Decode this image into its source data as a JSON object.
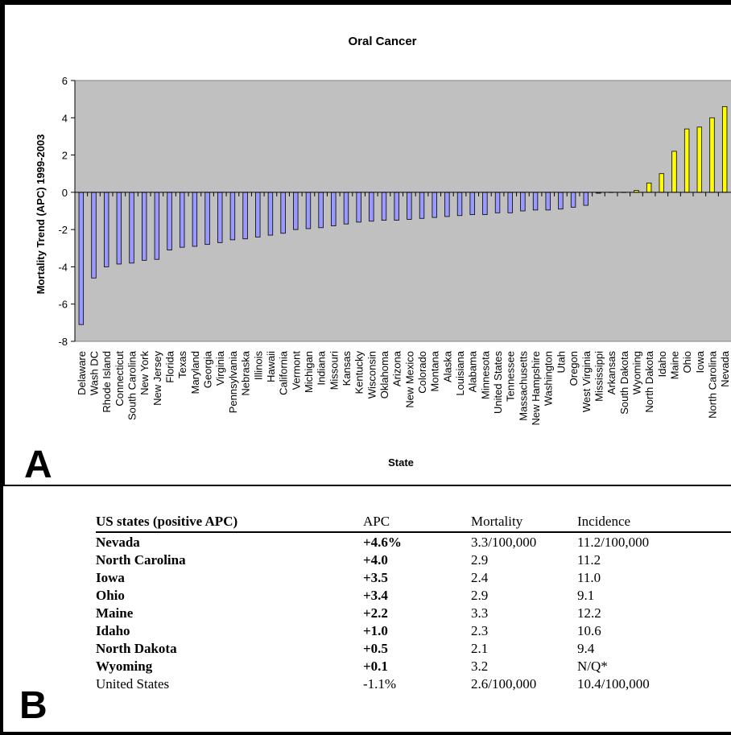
{
  "chart_data": {
    "type": "bar",
    "title": "Oral Cancer",
    "xlabel": "State",
    "ylabel": "Mortality Trend (APC) 1999-2003",
    "ylim": [
      -8,
      6
    ],
    "yticks": [
      6,
      4,
      2,
      0,
      -2,
      -4,
      -6,
      -8
    ],
    "grid": false,
    "categories": [
      "Delaware",
      "Wash DC",
      "Rhode Island",
      "Connecticut",
      "South Carolina",
      "New York",
      "New Jersey",
      "Florida",
      "Texas",
      "Maryland",
      "Georgia",
      "Virginia",
      "Pennsylvania",
      "Nebraska",
      "Illinois",
      "Hawaii",
      "California",
      "Vermont",
      "Michigan",
      "Indiana",
      "Missouri",
      "Kansas",
      "Kentucky",
      "Wisconsin",
      "Oklahoma",
      "Arizona",
      "New Mexico",
      "Colorado",
      "Montana",
      "Alaska",
      "Louisiana",
      "Alabama",
      "Minnesota",
      "United States",
      "Tennessee",
      "Massachusetts",
      "New Hampshire",
      "Washington",
      "Utah",
      "Oregon",
      "West Virginia",
      "Mississippi",
      "Arkansas",
      "South Dakota",
      "Wyoming",
      "North Dakota",
      "Idaho",
      "Maine",
      "Ohio",
      "Iowa",
      "North Carolina",
      "Nevada"
    ],
    "values": [
      -7.1,
      -4.6,
      -4.0,
      -3.85,
      -3.8,
      -3.65,
      -3.6,
      -3.1,
      -2.95,
      -2.9,
      -2.8,
      -2.7,
      -2.55,
      -2.5,
      -2.4,
      -2.3,
      -2.2,
      -2.0,
      -1.95,
      -1.9,
      -1.8,
      -1.7,
      -1.6,
      -1.55,
      -1.5,
      -1.5,
      -1.45,
      -1.4,
      -1.35,
      -1.3,
      -1.25,
      -1.2,
      -1.2,
      -1.1,
      -1.1,
      -1.0,
      -0.95,
      -0.95,
      -0.9,
      -0.8,
      -0.7,
      -0.05,
      0.0,
      0.0,
      0.1,
      0.5,
      1.0,
      2.2,
      3.4,
      3.5,
      4.0,
      4.6
    ],
    "colors": {
      "negative": "#9999ff",
      "positive": "#ffff00",
      "plot_bg": "#c0c0c0",
      "outline": "#000000"
    }
  },
  "panels": {
    "a": "A",
    "b": "B"
  },
  "table": {
    "headers": [
      "US states (positive APC)",
      "APC",
      "Mortality",
      "Incidence"
    ],
    "rows": [
      [
        "Nevada",
        "+4.6%",
        "3.3/100,000",
        "11.2/100,000"
      ],
      [
        "North Carolina",
        "+4.0",
        "2.9",
        "11.2"
      ],
      [
        "Iowa",
        "+3.5",
        "2.4",
        "11.0"
      ],
      [
        "Ohio",
        "+3.4",
        "2.9",
        "9.1"
      ],
      [
        "Maine",
        "+2.2",
        "3.3",
        "12.2"
      ],
      [
        "Idaho",
        "+1.0",
        "2.3",
        "10.6"
      ],
      [
        "North Dakota",
        "+0.5",
        "2.1",
        "9.4"
      ],
      [
        "Wyoming",
        "+0.1",
        "3.2",
        "N/Q*"
      ],
      [
        "United States",
        "-1.1%",
        "2.6/100,000",
        "10.4/100,000"
      ]
    ]
  }
}
